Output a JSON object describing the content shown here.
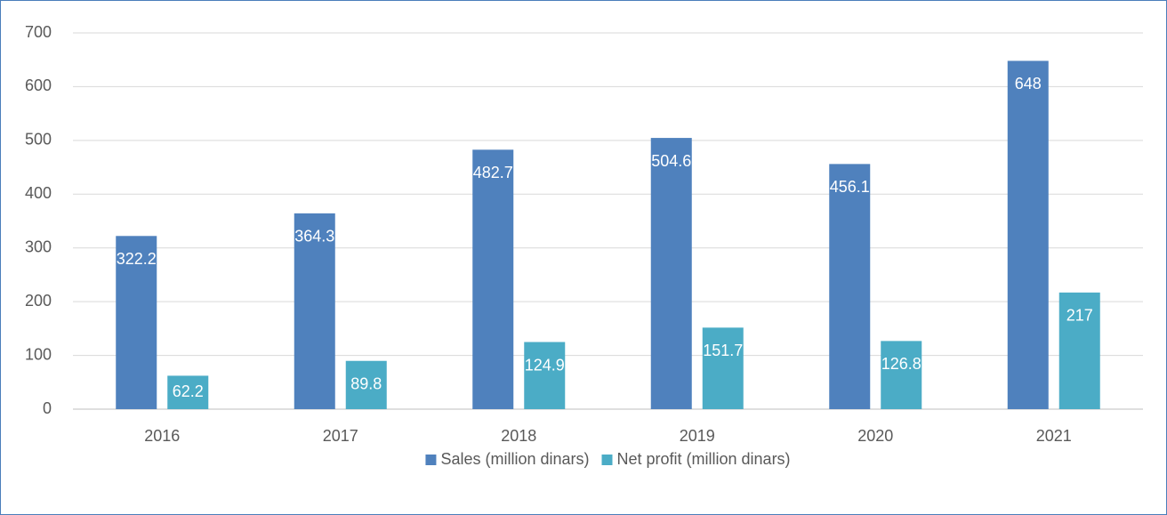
{
  "chart_data": {
    "type": "bar",
    "categories": [
      "2016",
      "2017",
      "2018",
      "2019",
      "2020",
      "2021"
    ],
    "series": [
      {
        "name": "Sales (million dinars)",
        "color": "#4f81bd",
        "values": [
          322.2,
          364.3,
          482.7,
          504.6,
          456.1,
          648
        ]
      },
      {
        "name": "Net profit (million dinars)",
        "color": "#4bacc6",
        "values": [
          62.2,
          89.8,
          124.9,
          151.7,
          126.8,
          217
        ]
      }
    ],
    "ylim": [
      0,
      700
    ],
    "yticks": [
      0,
      100,
      200,
      300,
      400,
      500,
      600,
      700
    ],
    "grid": true,
    "legend": "bottom"
  }
}
